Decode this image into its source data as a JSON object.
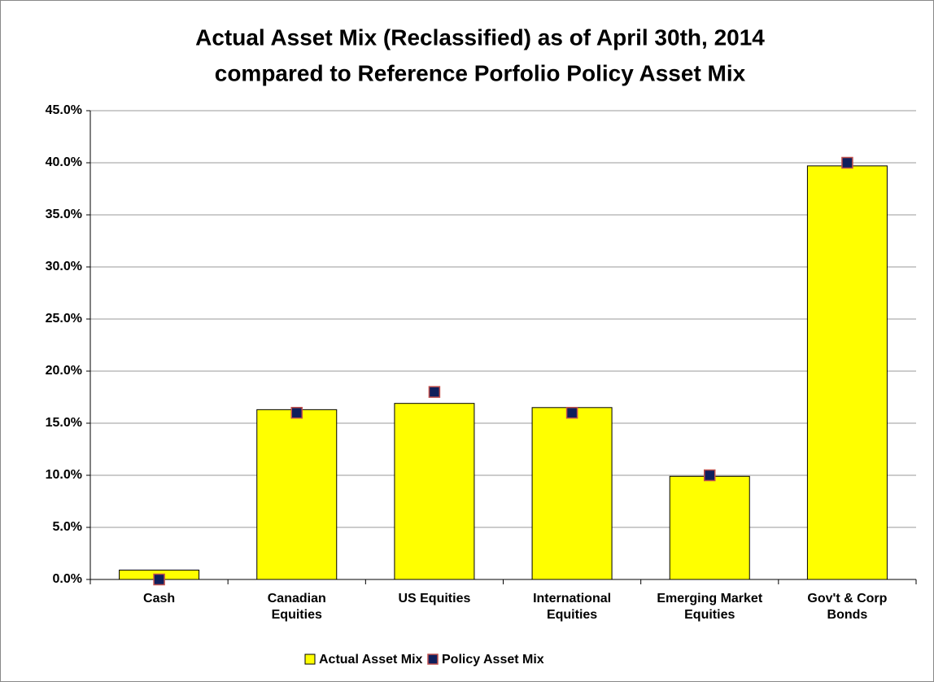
{
  "chart_data": {
    "type": "bar",
    "title": [
      "Actual Asset Mix (Reclassified) as of April 30th, 2014",
      "compared to Reference Porfolio Policy Asset Mix"
    ],
    "categories": [
      "Cash",
      "Canadian Equities",
      "US Equities",
      "International Equities",
      "Emerging Market Equities",
      "Gov't & Corp Bonds"
    ],
    "series": [
      {
        "name": "Actual Asset Mix",
        "type": "bar",
        "color": "#ffff00",
        "values": [
          0.9,
          16.3,
          16.9,
          16.5,
          9.9,
          39.7
        ]
      },
      {
        "name": "Policy Asset Mix",
        "type": "marker",
        "color": "#0f1f5c",
        "values": [
          0,
          16,
          18,
          16,
          10,
          40
        ]
      }
    ],
    "ylim": [
      0,
      45
    ],
    "yticks": [
      {
        "value": 0,
        "label": "0.0%"
      },
      {
        "value": 5,
        "label": "5.0%"
      },
      {
        "value": 10,
        "label": "10.0%"
      },
      {
        "value": 15,
        "label": "15.0%"
      },
      {
        "value": 20,
        "label": "20.0%"
      },
      {
        "value": 25,
        "label": "25.0%"
      },
      {
        "value": 30,
        "label": "30.0%"
      },
      {
        "value": 35,
        "label": "35.0%"
      },
      {
        "value": 40,
        "label": "40.0%"
      },
      {
        "value": 45,
        "label": "45.0%"
      }
    ],
    "grid": true,
    "legend": "bottom"
  }
}
